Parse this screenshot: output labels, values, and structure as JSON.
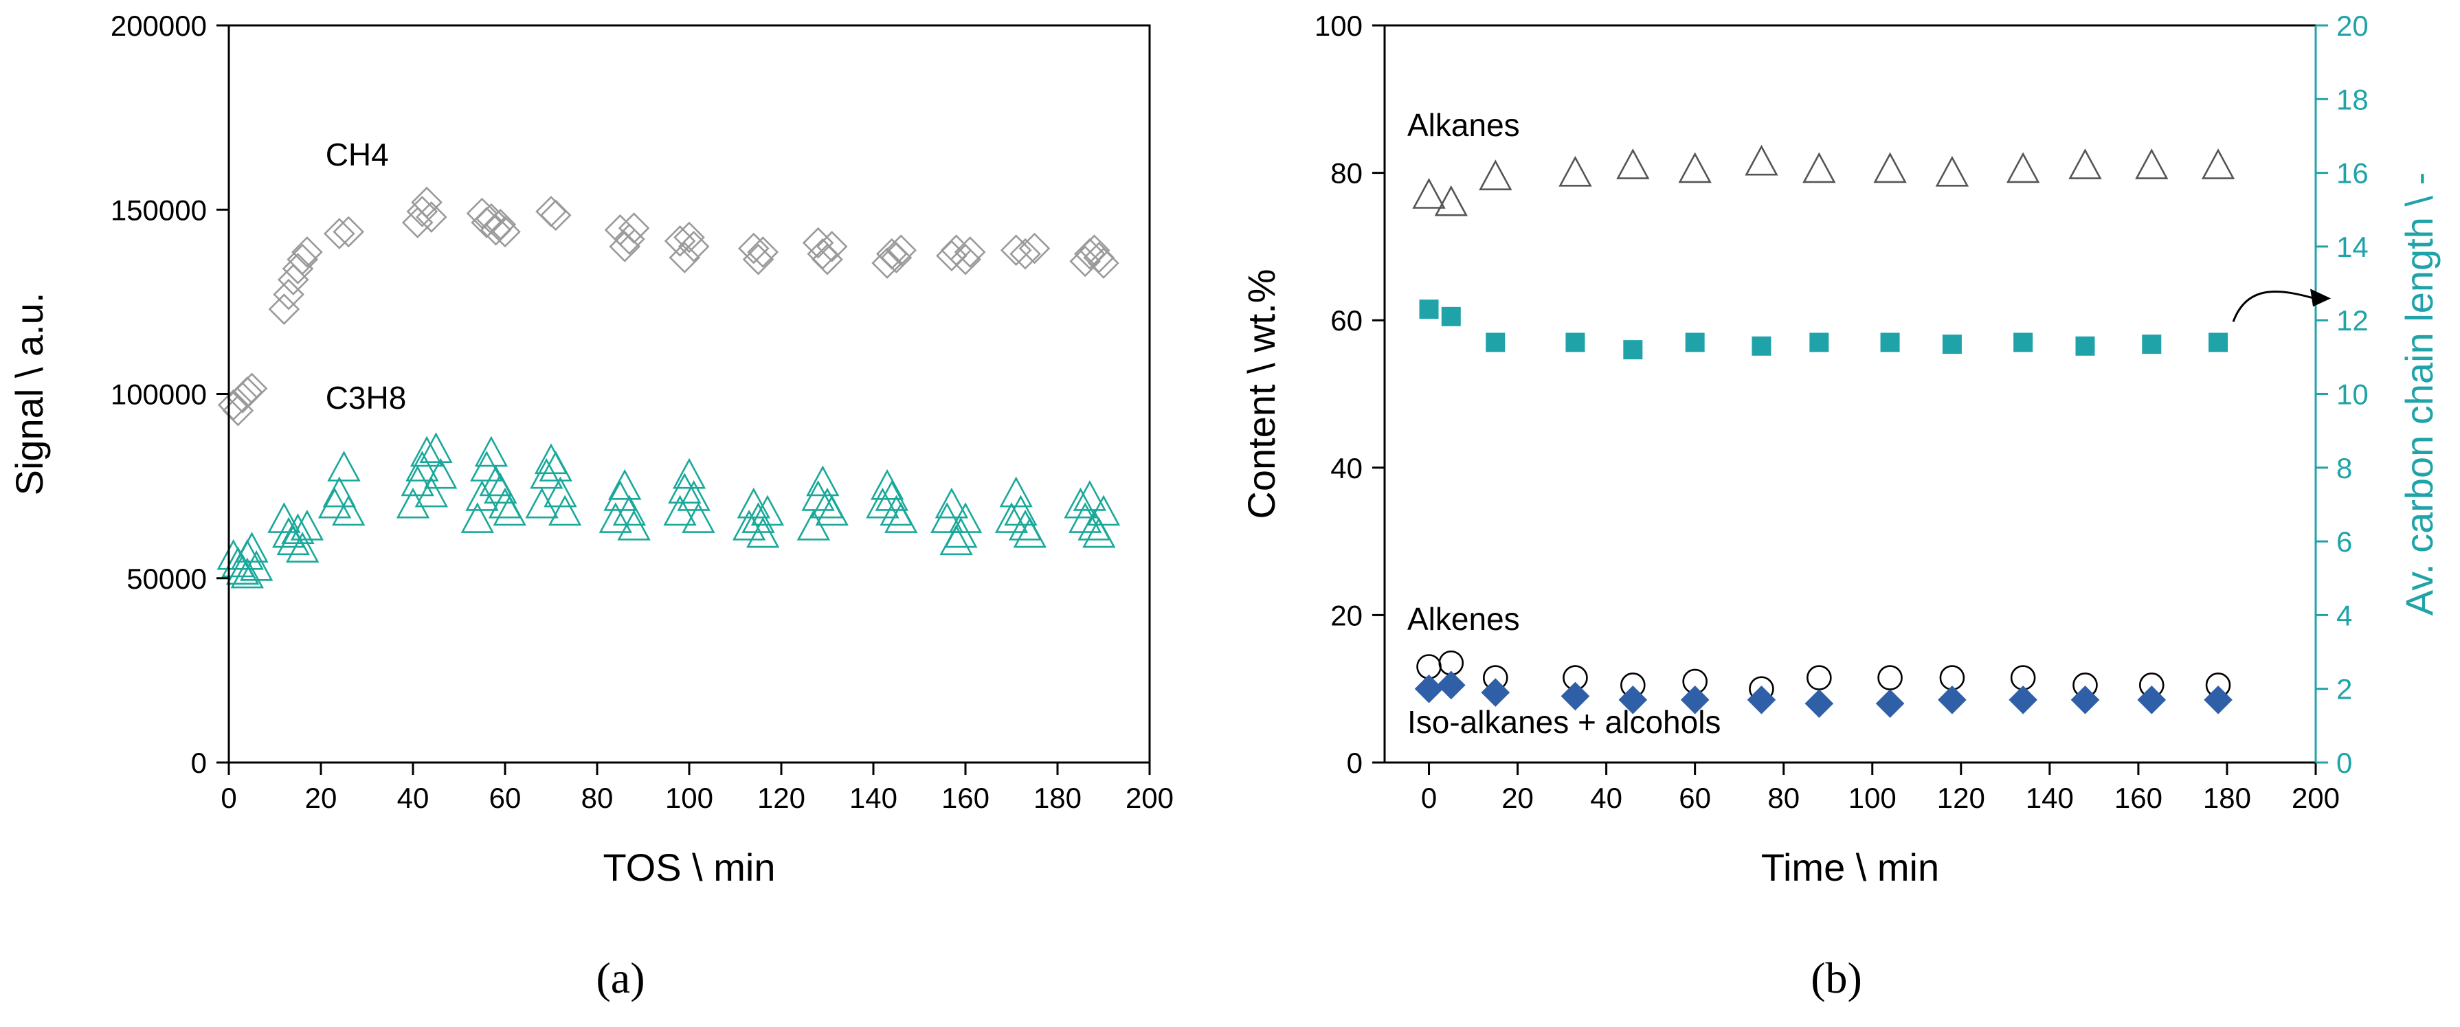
{
  "figure": {
    "panel_labels": {
      "a": "(a)",
      "b": "(b)"
    }
  },
  "chart_data": [
    {
      "id": "a",
      "type": "scatter",
      "xlabel": "TOS \\ min",
      "ylabel": "Signal \\ a.u.",
      "xlim": [
        0,
        200
      ],
      "ylim": [
        0,
        200000
      ],
      "xticks": [
        0,
        20,
        40,
        60,
        80,
        100,
        120,
        140,
        160,
        180,
        200
      ],
      "yticks": [
        0,
        50000,
        100000,
        150000,
        200000
      ],
      "annotations": [
        {
          "text": "CH4",
          "x": 21,
          "y": 162000
        },
        {
          "text": "C3H8",
          "x": 21,
          "y": 96000
        }
      ],
      "series": [
        {
          "name": "CH4",
          "marker": "diamond-open",
          "color": "#9a9a9a",
          "points": [
            [
              1,
              97000
            ],
            [
              2,
              95500
            ],
            [
              3,
              99000
            ],
            [
              4,
              100500
            ],
            [
              5,
              101500
            ],
            [
              12,
              123000
            ],
            [
              13,
              127000
            ],
            [
              14,
              131000
            ],
            [
              15,
              134000
            ],
            [
              16,
              136500
            ],
            [
              17,
              138500
            ],
            [
              24,
              143500
            ],
            [
              26,
              144000
            ],
            [
              41,
              146500
            ],
            [
              42,
              149500
            ],
            [
              43,
              152000
            ],
            [
              44,
              148000
            ],
            [
              55,
              149000
            ],
            [
              56,
              146500
            ],
            [
              57,
              147500
            ],
            [
              58,
              144500
            ],
            [
              59,
              146000
            ],
            [
              60,
              144000
            ],
            [
              70,
              149500
            ],
            [
              71,
              148500
            ],
            [
              85,
              144500
            ],
            [
              86,
              140000
            ],
            [
              87,
              142000
            ],
            [
              88,
              145000
            ],
            [
              98,
              141500
            ],
            [
              99,
              137000
            ],
            [
              100,
              142500
            ],
            [
              101,
              140000
            ],
            [
              114,
              139500
            ],
            [
              115,
              136500
            ],
            [
              116,
              138500
            ],
            [
              128,
              141000
            ],
            [
              129,
              138000
            ],
            [
              130,
              136500
            ],
            [
              131,
              140000
            ],
            [
              143,
              135500
            ],
            [
              144,
              138000
            ],
            [
              145,
              137000
            ],
            [
              146,
              139000
            ],
            [
              157,
              137500
            ],
            [
              158,
              139000
            ],
            [
              160,
              136500
            ],
            [
              161,
              138500
            ],
            [
              171,
              139000
            ],
            [
              173,
              138000
            ],
            [
              175,
              139500
            ],
            [
              186,
              136000
            ],
            [
              187,
              138000
            ],
            [
              188,
              139000
            ],
            [
              189,
              137000
            ],
            [
              190,
              135500
            ]
          ]
        },
        {
          "name": "C3H8",
          "marker": "triangle-open",
          "color": "#19a89a",
          "points": [
            [
              1,
              56000
            ],
            [
              2,
              54000
            ],
            [
              3,
              52000
            ],
            [
              4,
              51000
            ],
            [
              4,
              56000
            ],
            [
              5,
              58000
            ],
            [
              6,
              53000
            ],
            [
              12,
              66000
            ],
            [
              13,
              62000
            ],
            [
              14,
              60000
            ],
            [
              15,
              63000
            ],
            [
              16,
              58000
            ],
            [
              17,
              64000
            ],
            [
              23,
              70000
            ],
            [
              24,
              73000
            ],
            [
              25,
              80000
            ],
            [
              26,
              68000
            ],
            [
              40,
              70000
            ],
            [
              41,
              76000
            ],
            [
              42,
              80000
            ],
            [
              43,
              84000
            ],
            [
              44,
              73000
            ],
            [
              45,
              85000
            ],
            [
              46,
              78000
            ],
            [
              54,
              66000
            ],
            [
              55,
              72000
            ],
            [
              56,
              80000
            ],
            [
              57,
              84000
            ],
            [
              58,
              76000
            ],
            [
              59,
              74000
            ],
            [
              60,
              70000
            ],
            [
              61,
              68000
            ],
            [
              68,
              70000
            ],
            [
              69,
              78000
            ],
            [
              70,
              82000
            ],
            [
              71,
              80000
            ],
            [
              72,
              73000
            ],
            [
              73,
              68000
            ],
            [
              84,
              66000
            ],
            [
              85,
              72000
            ],
            [
              86,
              75000
            ],
            [
              87,
              68000
            ],
            [
              88,
              64000
            ],
            [
              98,
              68000
            ],
            [
              99,
              74000
            ],
            [
              100,
              78000
            ],
            [
              101,
              72000
            ],
            [
              102,
              66000
            ],
            [
              113,
              64000
            ],
            [
              114,
              70000
            ],
            [
              115,
              66000
            ],
            [
              116,
              62000
            ],
            [
              117,
              68000
            ],
            [
              127,
              64000
            ],
            [
              128,
              72000
            ],
            [
              129,
              76000
            ],
            [
              130,
              70000
            ],
            [
              131,
              68000
            ],
            [
              142,
              70000
            ],
            [
              143,
              75000
            ],
            [
              144,
              72000
            ],
            [
              145,
              68000
            ],
            [
              146,
              66000
            ],
            [
              156,
              66000
            ],
            [
              157,
              70000
            ],
            [
              158,
              60000
            ],
            [
              159,
              62000
            ],
            [
              160,
              66000
            ],
            [
              170,
              66000
            ],
            [
              171,
              73000
            ],
            [
              172,
              68000
            ],
            [
              173,
              64000
            ],
            [
              174,
              62000
            ],
            [
              185,
              70000
            ],
            [
              186,
              66000
            ],
            [
              187,
              72000
            ],
            [
              188,
              64000
            ],
            [
              189,
              62000
            ],
            [
              190,
              68000
            ]
          ]
        }
      ]
    },
    {
      "id": "b",
      "type": "scatter",
      "xlabel": "Time \\ min",
      "ylabel": "Content \\ wt.%",
      "y2label": "Av. carbon chain length \\ -",
      "xlim": [
        -10,
        200
      ],
      "ylim": [
        0,
        100
      ],
      "y2lim": [
        0,
        20
      ],
      "xticks": [
        0,
        20,
        40,
        60,
        80,
        100,
        120,
        140,
        160,
        180,
        200
      ],
      "yticks": [
        0,
        20,
        40,
        60,
        80,
        100
      ],
      "y2ticks": [
        0,
        2,
        4,
        6,
        8,
        10,
        12,
        14,
        16,
        18,
        20
      ],
      "annotations": [
        {
          "text": "Alkanes",
          "x": -10,
          "y": 85
        },
        {
          "text": "Alkenes",
          "x": -10,
          "y": 18
        },
        {
          "text": "Iso-alkanes + alcohols",
          "x": -10,
          "y": 4
        }
      ],
      "x": [
        0,
        5,
        15,
        33,
        46,
        60,
        75,
        88,
        104,
        118,
        134,
        148,
        163,
        178
      ],
      "series": [
        {
          "name": "Alkanes",
          "axis": "left",
          "marker": "triangle-open",
          "color": "#555555",
          "values": [
            77,
            76,
            79.5,
            80,
            81,
            80.5,
            81.5,
            80.5,
            80.5,
            80,
            80.5,
            81,
            81,
            81
          ]
        },
        {
          "name": "Alkenes",
          "axis": "left",
          "marker": "circle-open",
          "color": "#000000",
          "values": [
            13,
            13.5,
            11.5,
            11.5,
            10.5,
            11,
            10,
            11.5,
            11.5,
            11.5,
            11.5,
            10.5,
            10.5,
            10.5
          ]
        },
        {
          "name": "Iso-alkanes + alcohols",
          "axis": "left",
          "marker": "diamond-filled",
          "color": "#2e5fa7",
          "values": [
            10,
            10.5,
            9.5,
            9,
            8.5,
            8.5,
            8.5,
            8,
            8,
            8.5,
            8.5,
            8.5,
            8.5,
            8.5
          ]
        },
        {
          "name": "Av. carbon chain length",
          "axis": "right",
          "marker": "square-filled",
          "color": "#1fa3a8",
          "values": [
            12.3,
            12.1,
            11.4,
            11.4,
            11.2,
            11.4,
            11.3,
            11.4,
            11.4,
            11.35,
            11.4,
            11.3,
            11.35,
            11.4
          ]
        }
      ]
    }
  ]
}
